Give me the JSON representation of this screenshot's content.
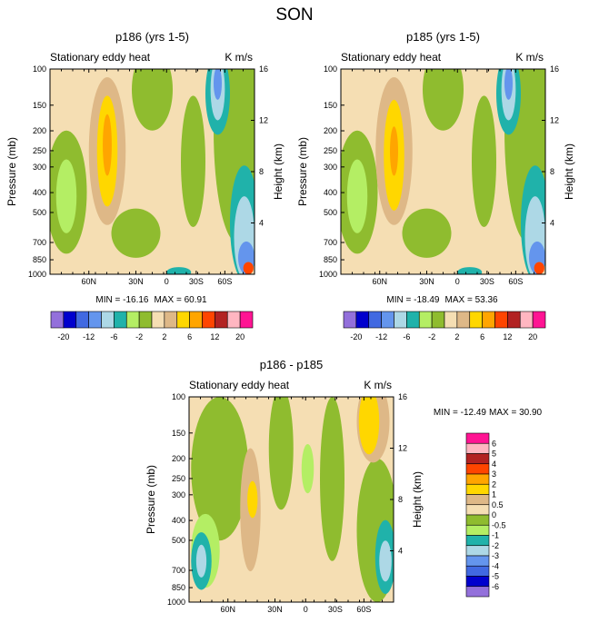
{
  "page_title": "SON",
  "colors": {
    "axis": "#000000",
    "background": "#ffffff"
  },
  "chart_data": [
    {
      "type": "heatmap",
      "title": "p186 (yrs 1-5)",
      "subtitle_left": "Stationary eddy heat",
      "subtitle_right": "K m/s",
      "xlabel": "",
      "ylabel": "Pressure (mb)",
      "ylabel_right": "Height (km)",
      "x_ticks": [
        "60N",
        "30N",
        "0",
        "30S",
        "60S"
      ],
      "y_ticks": [
        "100",
        "150",
        "200",
        "250",
        "300",
        "400",
        "500",
        "700",
        "850",
        "1000"
      ],
      "y_ticks_right": [
        "16",
        "12",
        "8",
        "4"
      ],
      "ylim": [
        1000,
        100
      ],
      "min_label": "MIN = -16.16",
      "max_label": "MAX =  60.91",
      "min": -16.16,
      "max": 60.91,
      "colorbar": {
        "orientation": "horizontal",
        "levels": [
          -20,
          -16,
          -12,
          -8,
          -6,
          -4,
          -2,
          -1,
          2,
          4,
          6,
          8,
          12,
          16,
          20
        ],
        "tick_labels": [
          "-20",
          "-12",
          "-6",
          "-2",
          "2",
          "6",
          "12",
          "20"
        ],
        "colors": [
          "#9370db",
          "#0000cd",
          "#4169e1",
          "#6495ed",
          "#add8e6",
          "#20b2aa",
          "#b4ee64",
          "#8fbc2f",
          "#f5deb3",
          "#deb887",
          "#ffd700",
          "#ffa500",
          "#ff4500",
          "#b22222",
          "#ffb6c1",
          "#ff1493"
        ]
      }
    },
    {
      "type": "heatmap",
      "title": "p185 (yrs 1-5)",
      "subtitle_left": "Stationary eddy heat",
      "subtitle_right": "K m/s",
      "xlabel": "",
      "ylabel": "Pressure (mb)",
      "ylabel_right": "Height (km)",
      "x_ticks": [
        "60N",
        "30N",
        "0",
        "30S",
        "60S"
      ],
      "y_ticks": [
        "100",
        "150",
        "200",
        "250",
        "300",
        "400",
        "500",
        "700",
        "850",
        "1000"
      ],
      "y_ticks_right": [
        "16",
        "12",
        "8",
        "4"
      ],
      "ylim": [
        1000,
        100
      ],
      "min_label": "MIN = -18.49",
      "max_label": "MAX =  53.36",
      "min": -18.49,
      "max": 53.36,
      "colorbar": {
        "orientation": "horizontal",
        "levels": [
          -20,
          -16,
          -12,
          -8,
          -6,
          -4,
          -2,
          -1,
          2,
          4,
          6,
          8,
          12,
          16,
          20
        ],
        "tick_labels": [
          "-20",
          "-12",
          "-6",
          "-2",
          "2",
          "6",
          "12",
          "20"
        ],
        "colors": [
          "#9370db",
          "#0000cd",
          "#4169e1",
          "#6495ed",
          "#add8e6",
          "#20b2aa",
          "#b4ee64",
          "#8fbc2f",
          "#f5deb3",
          "#deb887",
          "#ffd700",
          "#ffa500",
          "#ff4500",
          "#b22222",
          "#ffb6c1",
          "#ff1493"
        ]
      }
    },
    {
      "type": "heatmap",
      "title": "p186 - p185",
      "subtitle_left": "Stationary eddy heat",
      "subtitle_right": "K m/s",
      "xlabel": "",
      "ylabel": "Pressure (mb)",
      "ylabel_right": "Height (km)",
      "x_ticks": [
        "60N",
        "30N",
        "0",
        "30S",
        "60S"
      ],
      "y_ticks": [
        "100",
        "150",
        "200",
        "250",
        "300",
        "400",
        "500",
        "700",
        "850",
        "1000"
      ],
      "y_ticks_right": [
        "16",
        "12",
        "8",
        "4"
      ],
      "ylim": [
        1000,
        100
      ],
      "min_label": "MIN = -12.49",
      "max_label": "MAX =  30.90",
      "min": -12.49,
      "max": 30.9,
      "colorbar": {
        "orientation": "vertical",
        "tick_labels": [
          "6",
          "5",
          "4",
          "3",
          "2",
          "1",
          "0.5",
          "0",
          "-0.5",
          "-1",
          "-2",
          "-3",
          "-4",
          "-5",
          "-6"
        ],
        "colors": [
          "#ff1493",
          "#ffb6c1",
          "#b22222",
          "#ff4500",
          "#ffa500",
          "#ffd700",
          "#deb887",
          "#f5deb3",
          "#8fbc2f",
          "#b4ee64",
          "#20b2aa",
          "#add8e6",
          "#6495ed",
          "#4169e1",
          "#0000cd",
          "#9370db"
        ]
      }
    }
  ]
}
